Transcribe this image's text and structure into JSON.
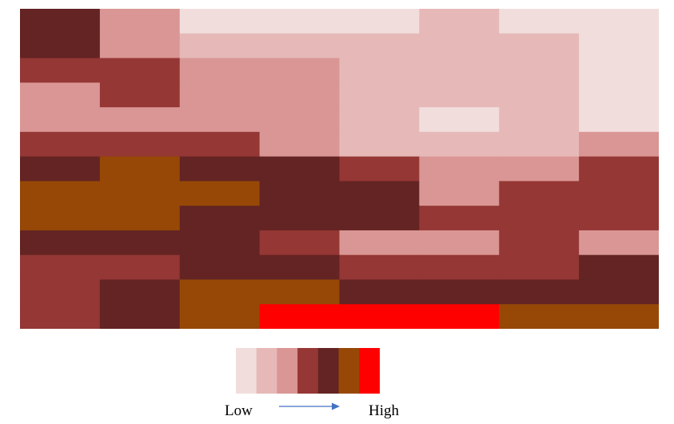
{
  "chart_data": {
    "type": "heatmap",
    "title": "",
    "xlabel": "",
    "ylabel": "",
    "rows": 13,
    "cols": 8,
    "colorscale": {
      "levels": [
        1,
        2,
        3,
        4,
        5,
        6,
        7
      ],
      "colors": [
        "#f2dddd",
        "#e6b9b8",
        "#d99694",
        "#953735",
        "#632423",
        "#974806",
        "#ff0000"
      ],
      "low_label": "Low",
      "high_label": "High"
    },
    "values": [
      [
        5,
        3,
        1,
        1,
        1,
        2,
        1,
        1
      ],
      [
        5,
        3,
        2,
        2,
        2,
        2,
        2,
        1
      ],
      [
        4,
        4,
        3,
        3,
        2,
        2,
        2,
        1
      ],
      [
        3,
        4,
        3,
        3,
        2,
        2,
        2,
        1
      ],
      [
        3,
        3,
        3,
        3,
        2,
        1,
        2,
        1
      ],
      [
        4,
        4,
        4,
        3,
        2,
        2,
        2,
        3
      ],
      [
        5,
        6,
        5,
        5,
        4,
        3,
        3,
        4
      ],
      [
        6,
        6,
        6,
        5,
        5,
        3,
        4,
        4
      ],
      [
        6,
        6,
        5,
        5,
        5,
        4,
        4,
        4
      ],
      [
        5,
        5,
        5,
        4,
        3,
        3,
        4,
        3
      ],
      [
        4,
        4,
        5,
        5,
        4,
        4,
        4,
        5
      ],
      [
        4,
        5,
        6,
        6,
        5,
        5,
        5,
        5
      ],
      [
        4,
        5,
        6,
        7,
        7,
        7,
        6,
        6
      ]
    ]
  }
}
